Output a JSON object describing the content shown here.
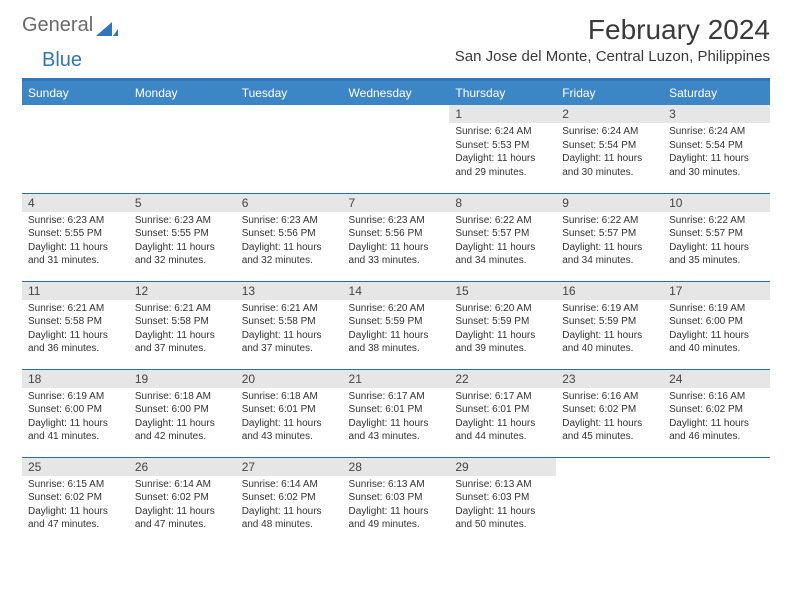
{
  "brand": {
    "word1": "General",
    "word2": "Blue"
  },
  "title": "February 2024",
  "location": "San Jose del Monte, Central Luzon, Philippines",
  "colors": {
    "accent": "#3275b8",
    "header_bg": "#3d86c6",
    "row_rule": "#2d6ca8",
    "daynum_bg": "#e6e6e6",
    "text": "#333333"
  },
  "weekdays": [
    "Sunday",
    "Monday",
    "Tuesday",
    "Wednesday",
    "Thursday",
    "Friday",
    "Saturday"
  ],
  "weeks": [
    [
      null,
      null,
      null,
      null,
      {
        "n": "1",
        "sr": "6:24 AM",
        "ss": "5:53 PM",
        "dl": "11 hours and 29 minutes."
      },
      {
        "n": "2",
        "sr": "6:24 AM",
        "ss": "5:54 PM",
        "dl": "11 hours and 30 minutes."
      },
      {
        "n": "3",
        "sr": "6:24 AM",
        "ss": "5:54 PM",
        "dl": "11 hours and 30 minutes."
      }
    ],
    [
      {
        "n": "4",
        "sr": "6:23 AM",
        "ss": "5:55 PM",
        "dl": "11 hours and 31 minutes."
      },
      {
        "n": "5",
        "sr": "6:23 AM",
        "ss": "5:55 PM",
        "dl": "11 hours and 32 minutes."
      },
      {
        "n": "6",
        "sr": "6:23 AM",
        "ss": "5:56 PM",
        "dl": "11 hours and 32 minutes."
      },
      {
        "n": "7",
        "sr": "6:23 AM",
        "ss": "5:56 PM",
        "dl": "11 hours and 33 minutes."
      },
      {
        "n": "8",
        "sr": "6:22 AM",
        "ss": "5:57 PM",
        "dl": "11 hours and 34 minutes."
      },
      {
        "n": "9",
        "sr": "6:22 AM",
        "ss": "5:57 PM",
        "dl": "11 hours and 34 minutes."
      },
      {
        "n": "10",
        "sr": "6:22 AM",
        "ss": "5:57 PM",
        "dl": "11 hours and 35 minutes."
      }
    ],
    [
      {
        "n": "11",
        "sr": "6:21 AM",
        "ss": "5:58 PM",
        "dl": "11 hours and 36 minutes."
      },
      {
        "n": "12",
        "sr": "6:21 AM",
        "ss": "5:58 PM",
        "dl": "11 hours and 37 minutes."
      },
      {
        "n": "13",
        "sr": "6:21 AM",
        "ss": "5:58 PM",
        "dl": "11 hours and 37 minutes."
      },
      {
        "n": "14",
        "sr": "6:20 AM",
        "ss": "5:59 PM",
        "dl": "11 hours and 38 minutes."
      },
      {
        "n": "15",
        "sr": "6:20 AM",
        "ss": "5:59 PM",
        "dl": "11 hours and 39 minutes."
      },
      {
        "n": "16",
        "sr": "6:19 AM",
        "ss": "5:59 PM",
        "dl": "11 hours and 40 minutes."
      },
      {
        "n": "17",
        "sr": "6:19 AM",
        "ss": "6:00 PM",
        "dl": "11 hours and 40 minutes."
      }
    ],
    [
      {
        "n": "18",
        "sr": "6:19 AM",
        "ss": "6:00 PM",
        "dl": "11 hours and 41 minutes."
      },
      {
        "n": "19",
        "sr": "6:18 AM",
        "ss": "6:00 PM",
        "dl": "11 hours and 42 minutes."
      },
      {
        "n": "20",
        "sr": "6:18 AM",
        "ss": "6:01 PM",
        "dl": "11 hours and 43 minutes."
      },
      {
        "n": "21",
        "sr": "6:17 AM",
        "ss": "6:01 PM",
        "dl": "11 hours and 43 minutes."
      },
      {
        "n": "22",
        "sr": "6:17 AM",
        "ss": "6:01 PM",
        "dl": "11 hours and 44 minutes."
      },
      {
        "n": "23",
        "sr": "6:16 AM",
        "ss": "6:02 PM",
        "dl": "11 hours and 45 minutes."
      },
      {
        "n": "24",
        "sr": "6:16 AM",
        "ss": "6:02 PM",
        "dl": "11 hours and 46 minutes."
      }
    ],
    [
      {
        "n": "25",
        "sr": "6:15 AM",
        "ss": "6:02 PM",
        "dl": "11 hours and 47 minutes."
      },
      {
        "n": "26",
        "sr": "6:14 AM",
        "ss": "6:02 PM",
        "dl": "11 hours and 47 minutes."
      },
      {
        "n": "27",
        "sr": "6:14 AM",
        "ss": "6:02 PM",
        "dl": "11 hours and 48 minutes."
      },
      {
        "n": "28",
        "sr": "6:13 AM",
        "ss": "6:03 PM",
        "dl": "11 hours and 49 minutes."
      },
      {
        "n": "29",
        "sr": "6:13 AM",
        "ss": "6:03 PM",
        "dl": "11 hours and 50 minutes."
      },
      null,
      null
    ]
  ],
  "labels": {
    "sunrise": "Sunrise:",
    "sunset": "Sunset:",
    "daylight": "Daylight:"
  }
}
